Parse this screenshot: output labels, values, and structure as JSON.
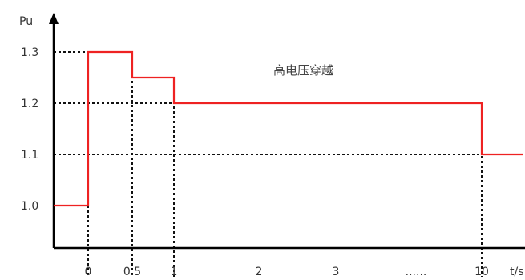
{
  "chart_data": {
    "type": "line",
    "title": "高电压穿越",
    "ylabel": "Pu",
    "xlabel": "t/s",
    "y_ticks": [
      "1.0",
      "1.1",
      "1.2",
      "1.3"
    ],
    "x_ticks": [
      "0",
      "0.5",
      "1",
      "2",
      "3",
      "......",
      "10"
    ],
    "series": [
      {
        "color": "#ee2222",
        "step_points": [
          {
            "x": "start",
            "y": 1.0
          },
          {
            "x": "0",
            "y": 1.0
          },
          {
            "x": "0",
            "y": 1.3
          },
          {
            "x": "0.5",
            "y": 1.3
          },
          {
            "x": "0.5",
            "y": 1.25
          },
          {
            "x": "1",
            "y": 1.25
          },
          {
            "x": "1",
            "y": 1.2
          },
          {
            "x": "10",
            "y": 1.2
          },
          {
            "x": "10",
            "y": 1.1
          },
          {
            "x": "end",
            "y": 1.1
          }
        ]
      }
    ],
    "reference_lines": {
      "horizontal_y": [
        1.0,
        1.1,
        1.2,
        1.3
      ],
      "vertical_x": [
        "0",
        "0.5",
        "1",
        "10"
      ]
    },
    "grid": false,
    "axis_style": "arrowed"
  }
}
